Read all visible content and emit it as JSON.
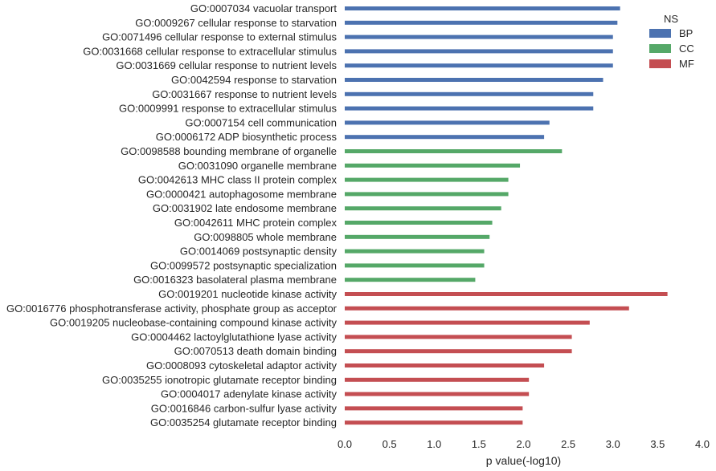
{
  "chart_data": {
    "type": "bar",
    "orientation": "horizontal",
    "title": "",
    "xlabel": "p value(-log10)",
    "ylabel": "",
    "xlim": [
      0.0,
      4.0
    ],
    "xticks": [
      "0.0",
      "0.5",
      "1.0",
      "1.5",
      "2.0",
      "2.5",
      "3.0",
      "3.5",
      "4.0"
    ],
    "grid": false,
    "legend": {
      "title": "NS",
      "placement": "top-right",
      "entries": [
        {
          "name": "BP",
          "color": "#4c72b0"
        },
        {
          "name": "CC",
          "color": "#55a868"
        },
        {
          "name": "MF",
          "color": "#c44e52"
        }
      ]
    },
    "bars": [
      {
        "label": "GO:0007034 vacuolar transport",
        "value": 3.08,
        "ns": "BP"
      },
      {
        "label": "GO:0009267 cellular response to starvation",
        "value": 3.05,
        "ns": "BP"
      },
      {
        "label": "GO:0071496 cellular response to external stimulus",
        "value": 3.0,
        "ns": "BP"
      },
      {
        "label": "GO:0031668 cellular response to extracellular stimulus",
        "value": 3.0,
        "ns": "BP"
      },
      {
        "label": "GO:0031669 cellular response to nutrient levels",
        "value": 3.0,
        "ns": "BP"
      },
      {
        "label": "GO:0042594 response to starvation",
        "value": 2.89,
        "ns": "BP"
      },
      {
        "label": "GO:0031667 response to nutrient levels",
        "value": 2.78,
        "ns": "BP"
      },
      {
        "label": "GO:0009991 response to extracellular stimulus",
        "value": 2.78,
        "ns": "BP"
      },
      {
        "label": "GO:0007154 cell communication",
        "value": 2.29,
        "ns": "BP"
      },
      {
        "label": "GO:0006172 ADP biosynthetic process",
        "value": 2.23,
        "ns": "BP"
      },
      {
        "label": "GO:0098588 bounding membrane of organelle",
        "value": 2.43,
        "ns": "CC"
      },
      {
        "label": "GO:0031090 organelle membrane",
        "value": 1.96,
        "ns": "CC"
      },
      {
        "label": "GO:0042613 MHC class II protein complex",
        "value": 1.83,
        "ns": "CC"
      },
      {
        "label": "GO:0000421 autophagosome membrane",
        "value": 1.83,
        "ns": "CC"
      },
      {
        "label": "GO:0031902 late endosome membrane",
        "value": 1.75,
        "ns": "CC"
      },
      {
        "label": "GO:0042611 MHC protein complex",
        "value": 1.65,
        "ns": "CC"
      },
      {
        "label": "GO:0098805 whole membrane",
        "value": 1.62,
        "ns": "CC"
      },
      {
        "label": "GO:0014069 postsynaptic density",
        "value": 1.56,
        "ns": "CC"
      },
      {
        "label": "GO:0099572 postsynaptic specialization",
        "value": 1.56,
        "ns": "CC"
      },
      {
        "label": "GO:0016323 basolateral plasma membrane",
        "value": 1.46,
        "ns": "CC"
      },
      {
        "label": "GO:0019201 nucleotide kinase activity",
        "value": 3.61,
        "ns": "MF"
      },
      {
        "label": "GO:0016776 phosphotransferase activity, phosphate group as acceptor",
        "value": 3.18,
        "ns": "MF"
      },
      {
        "label": "GO:0019205 nucleobase-containing compound kinase activity",
        "value": 2.74,
        "ns": "MF"
      },
      {
        "label": "GO:0004462 lactoylglutathione lyase activity",
        "value": 2.54,
        "ns": "MF"
      },
      {
        "label": "GO:0070513 death domain binding",
        "value": 2.54,
        "ns": "MF"
      },
      {
        "label": "GO:0008093 cytoskeletal adaptor activity",
        "value": 2.23,
        "ns": "MF"
      },
      {
        "label": "GO:0035255 ionotropic glutamate receptor binding",
        "value": 2.06,
        "ns": "MF"
      },
      {
        "label": "GO:0004017 adenylate kinase activity",
        "value": 2.06,
        "ns": "MF"
      },
      {
        "label": "GO:0016846 carbon-sulfur lyase activity",
        "value": 1.99,
        "ns": "MF"
      },
      {
        "label": "GO:0035254 glutamate receptor binding",
        "value": 1.99,
        "ns": "MF"
      }
    ]
  }
}
